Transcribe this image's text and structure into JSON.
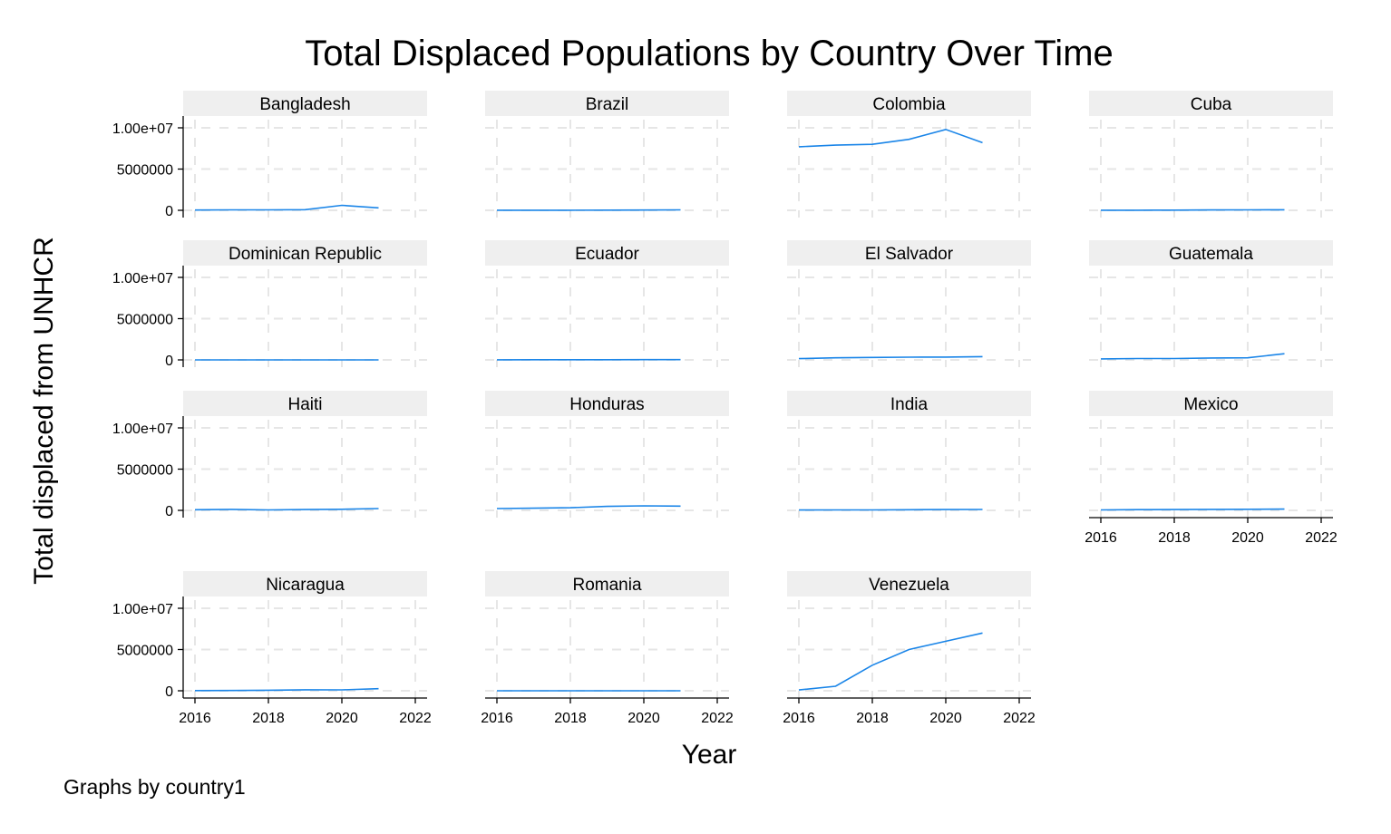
{
  "chart_data": {
    "type": "line",
    "title": "Total Displaced Populations by Country Over Time",
    "xlabel": "Year",
    "ylabel": "Total displaced from UNHCR",
    "note": "Graphs by country1",
    "x_ticks": [
      "2016",
      "2018",
      "2020",
      "2022"
    ],
    "y_ticks": [
      "0",
      "5000000",
      "1.00e+07"
    ],
    "xlim": [
      2016,
      2022
    ],
    "ylim": [
      0,
      10000000
    ],
    "grid": true,
    "line_color": "#1a85e8",
    "strip_color": "#efefef",
    "x": [
      2016,
      2017,
      2018,
      2019,
      2020,
      2021
    ],
    "panels": [
      {
        "name": "Bangladesh",
        "values": [
          30000,
          60000,
          60000,
          80000,
          600000,
          300000
        ]
      },
      {
        "name": "Brazil",
        "values": [
          10000,
          10000,
          15000,
          20000,
          30000,
          60000
        ]
      },
      {
        "name": "Colombia",
        "values": [
          7700000,
          7900000,
          8000000,
          8600000,
          9800000,
          8200000
        ]
      },
      {
        "name": "Cuba",
        "values": [
          10000,
          15000,
          25000,
          40000,
          50000,
          70000
        ]
      },
      {
        "name": "Dominican Republic",
        "values": [
          5000,
          5000,
          5000,
          5000,
          5000,
          5000
        ]
      },
      {
        "name": "Ecuador",
        "values": [
          15000,
          20000,
          20000,
          25000,
          30000,
          30000
        ]
      },
      {
        "name": "El Salvador",
        "values": [
          150000,
          250000,
          300000,
          330000,
          340000,
          400000
        ]
      },
      {
        "name": "Guatemala",
        "values": [
          120000,
          160000,
          160000,
          230000,
          250000,
          750000
        ]
      },
      {
        "name": "Haiti",
        "values": [
          80000,
          120000,
          60000,
          100000,
          130000,
          220000
        ]
      },
      {
        "name": "Honduras",
        "values": [
          220000,
          260000,
          320000,
          480000,
          550000,
          520000
        ]
      },
      {
        "name": "India",
        "values": [
          40000,
          50000,
          60000,
          80000,
          100000,
          110000
        ]
      },
      {
        "name": "Mexico",
        "values": [
          60000,
          90000,
          100000,
          120000,
          130000,
          150000
        ]
      },
      {
        "name": "Nicaragua",
        "values": [
          20000,
          30000,
          70000,
          120000,
          110000,
          250000
        ]
      },
      {
        "name": "Romania",
        "values": [
          5000,
          5000,
          5000,
          5000,
          5000,
          5000
        ]
      },
      {
        "name": "Venezuela",
        "values": [
          100000,
          550000,
          3100000,
          5000000,
          6000000,
          7000000
        ]
      }
    ]
  }
}
